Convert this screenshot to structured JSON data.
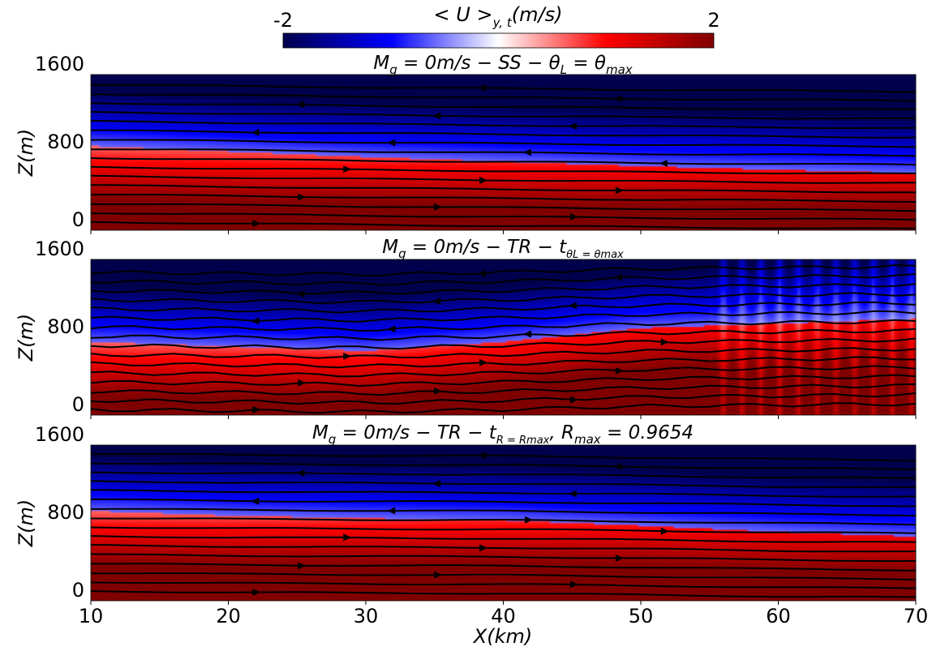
{
  "colorbar": {
    "label": "<U>_{y,t}(m/s)",
    "label_main": "< U >",
    "label_sub": "y, t",
    "label_unit": "(m/s)",
    "min_label": "-2",
    "max_label": "2",
    "colormap": "seismic",
    "colors": [
      "#00004c",
      "#0000ff",
      "#ffffff",
      "#ff0000",
      "#800000"
    ]
  },
  "chart_data": [
    {
      "type": "heatmap",
      "title": "M_g = 0m/s − SS − θ_L = θ_max",
      "title_parts": {
        "a": "M",
        "a_sub": "g",
        "b": " = 0m/s − SS − θ",
        "b_sub": "L",
        "c": " = θ",
        "c_sub": "max"
      },
      "xlabel": "",
      "ylabel": "Z(m)",
      "xlim": [
        10,
        70
      ],
      "ylim": [
        -100,
        1600
      ],
      "yticks": [
        "0",
        "800",
        "1600"
      ],
      "variable": "<U>_{y,t}",
      "units": "m/s",
      "vmin": -2,
      "vmax": 2,
      "interface_z": [
        820,
        760,
        700,
        650,
        600,
        560,
        520
      ],
      "interface_x": [
        10,
        20,
        30,
        40,
        50,
        60,
        70
      ]
    },
    {
      "type": "heatmap",
      "title": "M_g = 0m/s − TR − t_{θ_L = θ_max}",
      "title_parts": {
        "a": "M",
        "a_sub": "g",
        "b": " = 0m/s − TR − t",
        "b_sub": "θL = θmax"
      },
      "xlabel": "",
      "ylabel": "Z(m)",
      "xlim": [
        10,
        70
      ],
      "ylim": [
        -100,
        1600
      ],
      "yticks": [
        "0",
        "800",
        "1600"
      ],
      "variable": "<U>_{y,t}",
      "units": "m/s",
      "vmin": -2,
      "vmax": 2,
      "interface_z": [
        700,
        650,
        600,
        700,
        850,
        900,
        950
      ],
      "interface_x": [
        10,
        20,
        30,
        40,
        50,
        60,
        70
      ]
    },
    {
      "type": "heatmap",
      "title": "M_g = 0m/s − TR − t_{R = R_max}, R_max = 0.9654",
      "title_parts": {
        "a": "M",
        "a_sub": "g",
        "b": " = 0m/s − TR − t",
        "b_sub": "R = Rmax",
        "c": ", R",
        "c_sub": "max",
        "d": " = 0.9654"
      },
      "xlabel": "X(km)",
      "ylabel": "Z(m)",
      "xlim": [
        10,
        70
      ],
      "ylim": [
        -100,
        1600
      ],
      "xticks": [
        "10",
        "20",
        "30",
        "40",
        "50",
        "60",
        "70"
      ],
      "yticks": [
        "0",
        "800",
        "1600"
      ],
      "variable": "<U>_{y,t}",
      "units": "m/s",
      "vmin": -2,
      "vmax": 2,
      "interface_z": [
        880,
        830,
        800,
        780,
        720,
        650,
        600
      ],
      "interface_x": [
        10,
        20,
        30,
        40,
        50,
        60,
        70
      ]
    }
  ]
}
